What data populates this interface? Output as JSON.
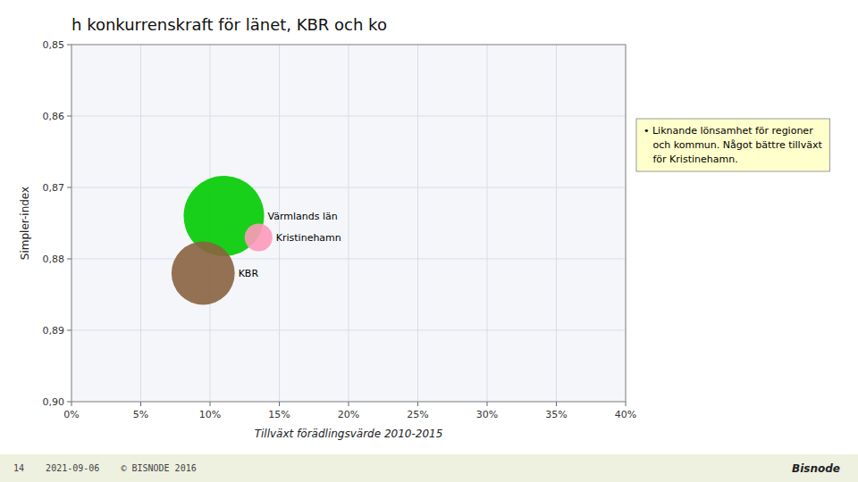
{
  "chart_data": {
    "type": "bubble",
    "title": "h konkurrenskraft för länet, KBR och ko",
    "x_label": "Tillväxt förädlingsvärde 2010-2015",
    "y_label": "Simpler-index",
    "xlim": [
      0.0,
      0.4
    ],
    "ylim": [
      0.9,
      0.85
    ],
    "xticks": [
      {
        "value": 0.0,
        "label": "0%"
      },
      {
        "value": 0.05,
        "label": "5%"
      },
      {
        "value": 0.1,
        "label": "10%"
      },
      {
        "value": 0.15,
        "label": "15%"
      },
      {
        "value": 0.2,
        "label": "20%"
      },
      {
        "value": 0.25,
        "label": "25%"
      },
      {
        "value": 0.3,
        "label": "30%"
      },
      {
        "value": 0.35,
        "label": "35%"
      },
      {
        "value": 0.4,
        "label": "40%"
      }
    ],
    "yticks": [
      {
        "value": 0.85,
        "label": "0,85"
      },
      {
        "value": 0.86,
        "label": "0,86"
      },
      {
        "value": 0.87,
        "label": "0,87"
      },
      {
        "value": 0.88,
        "label": "0,88"
      },
      {
        "value": 0.89,
        "label": "0,89"
      },
      {
        "value": 0.9,
        "label": "0,90"
      }
    ],
    "grid": true,
    "points": [
      {
        "name": "Värmlands län",
        "x": 0.11,
        "y": 0.874,
        "size": 4200,
        "color": "#00CC00"
      },
      {
        "name": "KBR",
        "x": 0.095,
        "y": 0.882,
        "size": 2600,
        "color": "#8B6340"
      },
      {
        "name": "Kristinehamn",
        "x": 0.135,
        "y": 0.877,
        "size": 500,
        "color": "#FF99BB"
      }
    ],
    "annotations": [
      "• Liknande lönsamhet för regioner\n   och kommun. Något bättre tillväxt\n   för Kristinehamn.",
      "14    2021-09-06    © BISNODE 2016",
      "Bisnode"
    ]
  }
}
